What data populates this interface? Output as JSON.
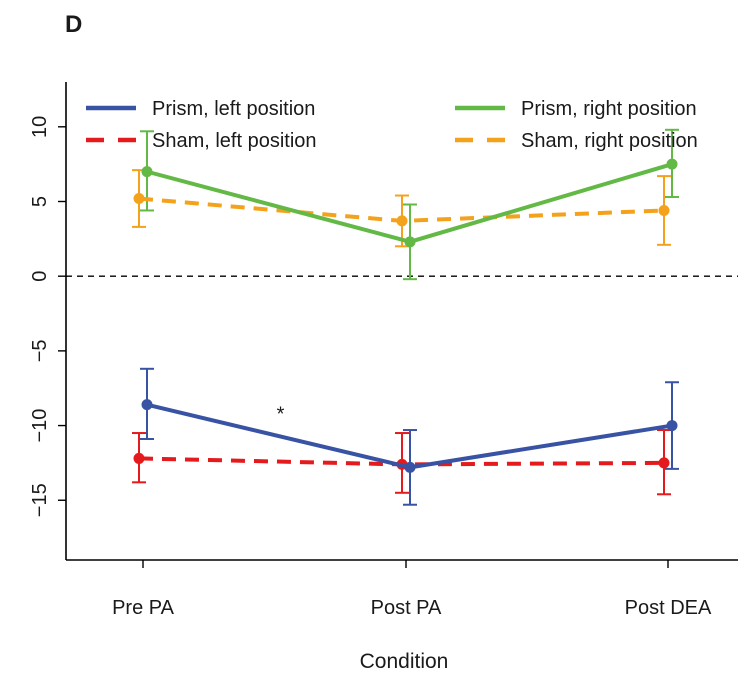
{
  "panel_label": "D",
  "chart_data": {
    "type": "line",
    "title": "",
    "xlabel": "Condition",
    "ylabel": "",
    "categories": [
      "Pre PA",
      "Post PA",
      "Post DEA"
    ],
    "ylim": [
      -19,
      13
    ],
    "yticks": [
      -15,
      -10,
      -5,
      0,
      5,
      10
    ],
    "ytick_labels": [
      "−15",
      "−10",
      "−5",
      "0",
      "5",
      "10"
    ],
    "reference_line": {
      "y": 0,
      "style": "dashed"
    },
    "annotation": {
      "text": "*",
      "x_between": [
        "Pre PA",
        "Post PA"
      ],
      "y": -9
    },
    "legend_position": "top",
    "series": [
      {
        "name": "Prism, left position",
        "color": "#3953a4",
        "dashed": false,
        "values": [
          -8.6,
          -12.8,
          -10.0
        ],
        "err_low": [
          -10.9,
          -15.3,
          -12.9
        ],
        "err_high": [
          -6.2,
          -10.3,
          -7.1
        ]
      },
      {
        "name": "Sham, left position",
        "color": "#e41a1c",
        "dashed": true,
        "values": [
          -12.2,
          -12.6,
          -12.5
        ],
        "err_low": [
          -13.8,
          -14.5,
          -14.6
        ],
        "err_high": [
          -10.5,
          -10.5,
          -10.3
        ]
      },
      {
        "name": "Prism, right position",
        "color": "#62b946",
        "dashed": false,
        "values": [
          7.0,
          2.3,
          7.5
        ],
        "err_low": [
          4.4,
          -0.2,
          5.3
        ],
        "err_high": [
          9.7,
          4.8,
          9.8
        ]
      },
      {
        "name": "Sham, right position",
        "color": "#f4a21c",
        "dashed": true,
        "values": [
          5.2,
          3.7,
          4.4
        ],
        "err_low": [
          3.3,
          2.0,
          2.1
        ],
        "err_high": [
          7.1,
          5.4,
          6.7
        ]
      }
    ]
  }
}
